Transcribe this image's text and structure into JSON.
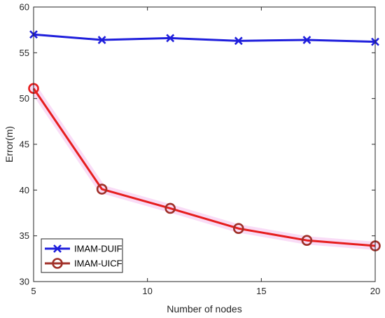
{
  "chart_data": {
    "type": "line",
    "xlabel": "Number of nodes",
    "ylabel": "Error(m)",
    "xlim": [
      5,
      20
    ],
    "ylim": [
      30,
      60
    ],
    "xticks": [
      5,
      10,
      15,
      20
    ],
    "yticks": [
      30,
      35,
      40,
      45,
      50,
      55,
      60
    ],
    "grid": false,
    "legend_position": "bottom-left",
    "x": [
      5,
      8,
      11,
      14,
      17,
      20
    ],
    "series": [
      {
        "name": "IMAM-DUIF",
        "marker": "x",
        "color": "#1f1fdc",
        "values": [
          57.0,
          56.4,
          56.6,
          56.3,
          56.4,
          56.2
        ]
      },
      {
        "name": "IMAM-UICF",
        "marker": "o",
        "color": "#e61e1e",
        "marker_color": "#a03028",
        "shadow_color": "#f4c0ee",
        "values": [
          51.1,
          40.1,
          38.0,
          35.8,
          34.5,
          33.9
        ]
      }
    ]
  }
}
